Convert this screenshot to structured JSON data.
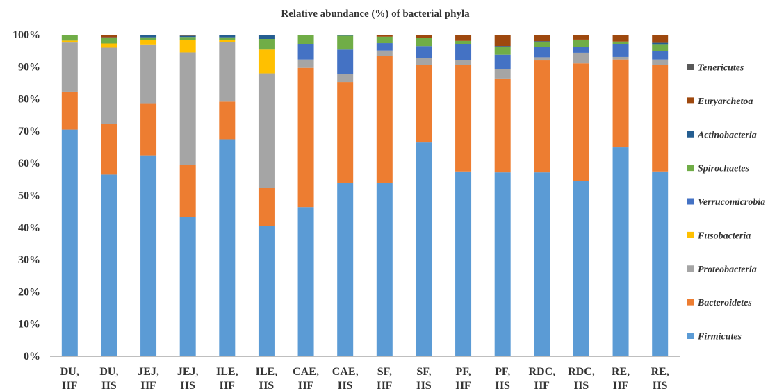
{
  "chart_data": {
    "type": "bar",
    "stacked": true,
    "title": "Relative abundance (%) of bacterial phyla",
    "xlabel": "",
    "ylabel": "",
    "ylim": [
      0,
      100
    ],
    "yticks": [
      "0%",
      "10%",
      "20%",
      "30%",
      "40%",
      "50%",
      "60%",
      "70%",
      "80%",
      "90%",
      "100%"
    ],
    "grid": false,
    "legend_position": "right",
    "categories": [
      [
        "DU,",
        "HF"
      ],
      [
        "DU,",
        "HS"
      ],
      [
        "JEJ,",
        "HF"
      ],
      [
        "JEJ,",
        "HS"
      ],
      [
        "ILE,",
        "HF"
      ],
      [
        "ILE,",
        "HS"
      ],
      [
        "CAE,",
        "HF"
      ],
      [
        "CAE,",
        "HS"
      ],
      [
        "SF,",
        "HF"
      ],
      [
        "SF,",
        "HS"
      ],
      [
        "PF,",
        "HF"
      ],
      [
        "PF,",
        "HS"
      ],
      [
        "RDC,",
        "HF"
      ],
      [
        "RDC,",
        "HS"
      ],
      [
        "RE,",
        "HF"
      ],
      [
        "RE,",
        "HS"
      ]
    ],
    "series": [
      {
        "name": "Firmicutes",
        "color": "#5b9bd5",
        "values": [
          70.5,
          56.5,
          62.5,
          43.3,
          67.5,
          40.5,
          46.4,
          54.0,
          54.0,
          66.5,
          57.5,
          57.2,
          57.2,
          54.6,
          65.0,
          57.5
        ]
      },
      {
        "name": "Bacteroidetes",
        "color": "#ed7d31",
        "values": [
          11.8,
          15.7,
          16.0,
          16.2,
          11.7,
          11.8,
          43.3,
          31.3,
          39.5,
          24.0,
          33.0,
          29.0,
          34.8,
          36.5,
          27.3,
          33.0
        ]
      },
      {
        "name": "Proteobacteria",
        "color": "#a5a5a5",
        "values": [
          15.3,
          23.8,
          18.3,
          35.0,
          18.5,
          35.7,
          2.6,
          2.5,
          1.6,
          2.2,
          1.6,
          3.2,
          1.0,
          3.3,
          0.8,
          1.8
        ]
      },
      {
        "name": "Fusobacteria",
        "color": "#ffc000",
        "values": [
          0.6,
          1.3,
          1.6,
          3.8,
          0.6,
          7.4,
          0.0,
          0.0,
          0.0,
          0.0,
          0.0,
          0.0,
          0.0,
          0.0,
          0.0,
          0.0
        ]
      },
      {
        "name": "Verrucomicrobia",
        "color": "#4472c4",
        "values": [
          0.0,
          0.0,
          0.0,
          0.0,
          0.0,
          0.0,
          4.7,
          7.6,
          2.3,
          3.8,
          5.0,
          4.4,
          3.2,
          1.8,
          4.0,
          2.6
        ]
      },
      {
        "name": "Spirochaetes",
        "color": "#70ad47",
        "values": [
          1.6,
          1.8,
          0.8,
          1.0,
          0.9,
          3.3,
          3.0,
          4.3,
          2.0,
          2.5,
          1.0,
          2.4,
          1.5,
          2.3,
          0.8,
          2.0
        ]
      },
      {
        "name": "Actinobacteria",
        "color": "#255e91",
        "values": [
          0.2,
          0.1,
          0.8,
          0.3,
          0.8,
          1.2,
          0.0,
          0.3,
          0.0,
          0.0,
          0.0,
          0.3,
          0.3,
          0.0,
          0.0,
          0.6
        ]
      },
      {
        "name": "Euryarchetoa",
        "color": "#9e480e",
        "values": [
          0.0,
          0.8,
          0.0,
          0.0,
          0.0,
          0.0,
          0.0,
          0.0,
          0.6,
          1.0,
          1.9,
          3.5,
          2.0,
          1.5,
          2.1,
          2.5
        ]
      },
      {
        "name": "Tenericutes",
        "color": "#595959",
        "values": [
          0.0,
          0.0,
          0.0,
          0.4,
          0.0,
          0.1,
          0.0,
          0.0,
          0.0,
          0.0,
          0.0,
          0.0,
          0.0,
          0.0,
          0.0,
          0.0
        ]
      }
    ],
    "legend_order": [
      "Tenericutes",
      "Euryarchetoa",
      "Actinobacteria",
      "Spirochaetes",
      "Verrucomicrobia",
      "Fusobacteria",
      "Proteobacteria",
      "Bacteroidetes",
      "Firmicutes"
    ]
  }
}
